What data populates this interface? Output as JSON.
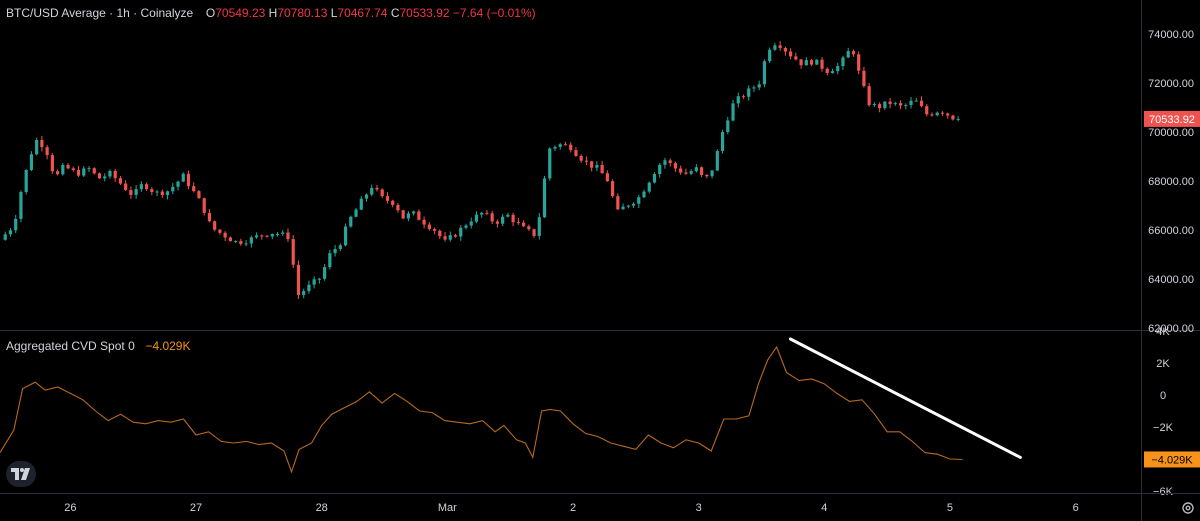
{
  "legend": {
    "title": "BTC/USD Average · 1h · Coinalyze",
    "o_key": "O",
    "o_val": "70549.23",
    "h_key": "H",
    "h_val": "70780.13",
    "l_key": "L",
    "l_val": "70467.74",
    "c_key": "C",
    "c_val": "70533.92",
    "change": "−7.64 (−0.01%)"
  },
  "indicator_legend": {
    "title": "Aggregated CVD Spot 0",
    "value": "−4.029K"
  },
  "colors": {
    "up": "#26a69a",
    "down": "#ef5350",
    "cvd": "#f7931a",
    "cvd_line": "#b8691f",
    "trend": "#ffffff",
    "price_badge": "#ef5350",
    "cvd_badge": "#f7931a"
  },
  "chart_data": [
    {
      "type": "candlestick",
      "title": "BTC/USD Average · 1h · Coinalyze",
      "ylim": [
        62000,
        75000
      ],
      "y_ticks": [
        "62000.00",
        "64000.00",
        "66000.00",
        "68000.00",
        "70000.00",
        "72000.00",
        "74000.00"
      ],
      "y_tick_values": [
        62000,
        64000,
        66000,
        68000,
        70000,
        72000,
        74000
      ],
      "last_price": "70533.92",
      "last_price_value": 70533.92,
      "x_ticks": [
        "26",
        "27",
        "28",
        "Mar",
        "2",
        "3",
        "4",
        "5",
        "6"
      ],
      "x_tick_days": [
        1,
        2,
        3,
        4,
        5,
        6,
        7,
        8,
        9
      ],
      "x_range_days": [
        0.44,
        9.52
      ],
      "close_path": [
        [
          0.44,
          65600
        ],
        [
          0.55,
          66200
        ],
        [
          0.62,
          67900
        ],
        [
          0.72,
          69700
        ],
        [
          0.8,
          69400
        ],
        [
          0.88,
          68100
        ],
        [
          0.95,
          68600
        ],
        [
          1.05,
          68300
        ],
        [
          1.15,
          68500
        ],
        [
          1.22,
          68100
        ],
        [
          1.32,
          68300
        ],
        [
          1.42,
          67800
        ],
        [
          1.5,
          67400
        ],
        [
          1.58,
          67900
        ],
        [
          1.68,
          67500
        ],
        [
          1.78,
          67600
        ],
        [
          1.9,
          68200
        ],
        [
          2.0,
          67400
        ],
        [
          2.05,
          67000
        ],
        [
          2.12,
          66100
        ],
        [
          2.22,
          65800
        ],
        [
          2.32,
          65500
        ],
        [
          2.42,
          65600
        ],
        [
          2.52,
          65800
        ],
        [
          2.62,
          65900
        ],
        [
          2.75,
          65700
        ],
        [
          2.8,
          63300
        ],
        [
          2.9,
          63700
        ],
        [
          3.0,
          64100
        ],
        [
          3.05,
          64900
        ],
        [
          3.15,
          65500
        ],
        [
          3.22,
          66400
        ],
        [
          3.32,
          67200
        ],
        [
          3.4,
          67800
        ],
        [
          3.48,
          67300
        ],
        [
          3.58,
          67100
        ],
        [
          3.65,
          66500
        ],
        [
          3.72,
          66700
        ],
        [
          3.82,
          66300
        ],
        [
          3.9,
          66000
        ],
        [
          3.98,
          65500
        ],
        [
          4.08,
          65900
        ],
        [
          4.18,
          66400
        ],
        [
          4.28,
          66700
        ],
        [
          4.38,
          66300
        ],
        [
          4.48,
          66600
        ],
        [
          4.55,
          66300
        ],
        [
          4.62,
          66000
        ],
        [
          4.7,
          65800
        ],
        [
          4.75,
          67000
        ],
        [
          4.8,
          69300
        ],
        [
          4.88,
          69500
        ],
        [
          4.98,
          69400
        ],
        [
          5.05,
          69000
        ],
        [
          5.12,
          68700
        ],
        [
          5.2,
          68500
        ],
        [
          5.28,
          68000
        ],
        [
          5.35,
          66700
        ],
        [
          5.42,
          67000
        ],
        [
          5.52,
          67300
        ],
        [
          5.58,
          67800
        ],
        [
          5.65,
          68400
        ],
        [
          5.72,
          68900
        ],
        [
          5.82,
          68500
        ],
        [
          5.9,
          68300
        ],
        [
          5.98,
          68500
        ],
        [
          6.05,
          68000
        ],
        [
          6.12,
          68600
        ],
        [
          6.2,
          70200
        ],
        [
          6.28,
          71200
        ],
        [
          6.38,
          71600
        ],
        [
          6.48,
          72000
        ],
        [
          6.55,
          73400
        ],
        [
          6.62,
          73700
        ],
        [
          6.72,
          73200
        ],
        [
          6.82,
          72800
        ],
        [
          6.92,
          72900
        ],
        [
          7.02,
          72500
        ],
        [
          7.12,
          72700
        ],
        [
          7.22,
          73500
        ],
        [
          7.28,
          72300
        ],
        [
          7.35,
          71200
        ],
        [
          7.42,
          71000
        ],
        [
          7.52,
          71200
        ],
        [
          7.62,
          71000
        ],
        [
          7.72,
          71300
        ],
        [
          7.82,
          70700
        ],
        [
          7.92,
          70900
        ],
        [
          8.02,
          70600
        ],
        [
          8.1,
          70530
        ]
      ]
    },
    {
      "type": "line",
      "title": "Aggregated CVD Spot 0",
      "ylim": [
        -6000,
        4000
      ],
      "y_ticks": [
        "−6K",
        "−4K",
        "−2K",
        "0",
        "2K",
        "4K"
      ],
      "y_tick_values": [
        -6000,
        -4000,
        -2000,
        0,
        2000,
        4000
      ],
      "last_value": "−4.029K",
      "last_value_num": -4029,
      "x_range_days": [
        0.44,
        9.52
      ],
      "series": [
        {
          "x": [
            0.44,
            0.55,
            0.62,
            0.72,
            0.8,
            0.9,
            1.0,
            1.1,
            1.2,
            1.3,
            1.4,
            1.5,
            1.6,
            1.7,
            1.8,
            1.9,
            2.0,
            2.1,
            2.2,
            2.3,
            2.4,
            2.5,
            2.6,
            2.7,
            2.76,
            2.82,
            2.92,
            3.0,
            3.08,
            3.18,
            3.28,
            3.38,
            3.48,
            3.58,
            3.68,
            3.78,
            3.88,
            3.98,
            4.08,
            4.18,
            4.28,
            4.38,
            4.45,
            4.55,
            4.62,
            4.68,
            4.75,
            4.82,
            4.9,
            5.0,
            5.1,
            5.2,
            5.3,
            5.4,
            5.5,
            5.6,
            5.7,
            5.8,
            5.9,
            6.0,
            6.1,
            6.2,
            6.3,
            6.4,
            6.48,
            6.55,
            6.62,
            6.7,
            6.8,
            6.9,
            7.0,
            7.1,
            7.2,
            7.3,
            7.4,
            7.5,
            7.6,
            7.7,
            7.8,
            7.9,
            8.0,
            8.1
          ],
          "y": [
            -3600,
            -2200,
            400,
            800,
            300,
            500,
            100,
            -300,
            -1000,
            -1600,
            -1200,
            -1700,
            -1800,
            -1600,
            -1700,
            -1500,
            -2500,
            -2300,
            -2900,
            -3000,
            -2900,
            -3100,
            -3000,
            -3500,
            -4800,
            -3400,
            -3000,
            -1900,
            -1200,
            -800,
            -400,
            200,
            -500,
            100,
            -400,
            -1000,
            -1100,
            -1600,
            -1700,
            -1800,
            -1600,
            -2300,
            -1900,
            -2800,
            -3000,
            -3900,
            -1000,
            -900,
            -1000,
            -1800,
            -2400,
            -2600,
            -3000,
            -3200,
            -3400,
            -2500,
            -3000,
            -3300,
            -2800,
            -3000,
            -3500,
            -1500,
            -1500,
            -1300,
            800,
            2200,
            3000,
            1400,
            900,
            1000,
            700,
            100,
            -400,
            -300,
            -1200,
            -2300,
            -2300,
            -2900,
            -3600,
            -3700,
            -4000,
            -4029
          ]
        }
      ],
      "annotations": [
        {
          "type": "trendline",
          "from": [
            6.73,
            3500
          ],
          "to": [
            8.56,
            -3900
          ]
        }
      ]
    }
  ]
}
